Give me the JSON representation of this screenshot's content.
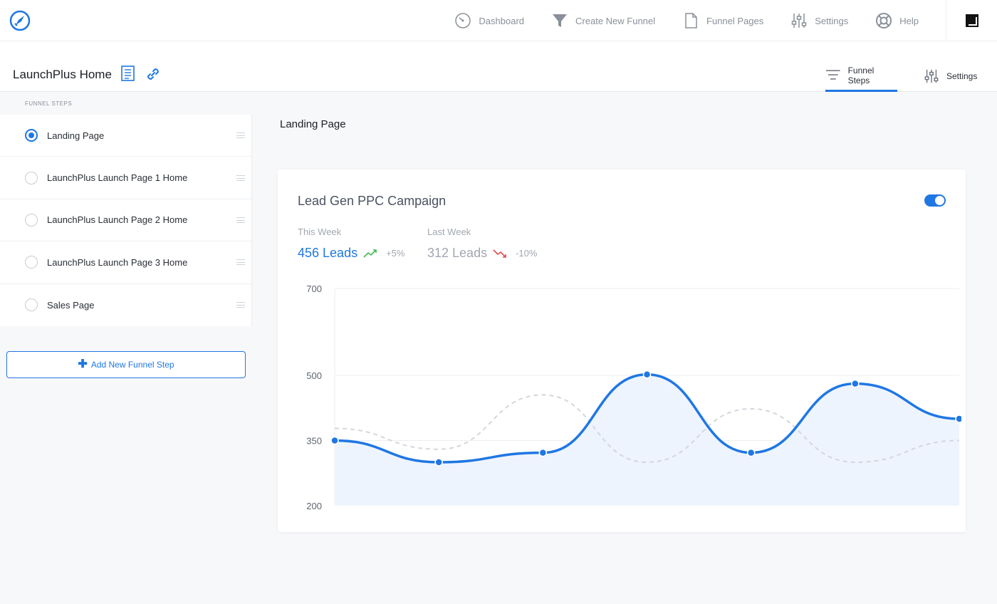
{
  "topnav": {
    "items": [
      {
        "label": "Dashboard",
        "icon": "dashboard-icon"
      },
      {
        "label": "Create New Funnel",
        "icon": "funnel-icon"
      },
      {
        "label": "Funnel Pages",
        "icon": "page-icon"
      },
      {
        "label": "Settings",
        "icon": "sliders-icon"
      },
      {
        "label": "Help",
        "icon": "lifebuoy-icon"
      }
    ]
  },
  "header": {
    "title": "LaunchPlus Home",
    "tabs": [
      {
        "label": "Funnel Steps",
        "active": true
      },
      {
        "label": "Settings",
        "active": false
      }
    ]
  },
  "sidebar": {
    "heading": "FUNNEL STEPS",
    "steps": [
      {
        "label": "Landing Page",
        "selected": true
      },
      {
        "label": "LaunchPlus Launch Page 1 Home",
        "selected": false
      },
      {
        "label": "LaunchPlus Launch Page 2 Home",
        "selected": false
      },
      {
        "label": "LaunchPlus Launch Page 3 Home",
        "selected": false
      },
      {
        "label": "Sales Page",
        "selected": false
      }
    ],
    "add_button": "Add New Funnel Step"
  },
  "main": {
    "section_title": "Landing Page",
    "card": {
      "title": "Lead Gen PPC Campaign",
      "toggle_on": true,
      "this_week": {
        "label": "This Week",
        "value": "456 Leads",
        "change": "+5%"
      },
      "last_week": {
        "label": "Last Week",
        "value": "312 Leads",
        "change": "-10%"
      }
    }
  },
  "colors": {
    "accent": "#1f77e3",
    "up": "#3fb950",
    "down": "#e5484d"
  },
  "chart_data": {
    "type": "line",
    "ylim": [
      200,
      700
    ],
    "yticks": [
      200,
      350,
      500,
      700
    ],
    "grid": true,
    "series": [
      {
        "values": [
          350,
          300,
          322,
          502,
          322,
          481,
          400
        ]
      },
      {
        "values": [
          378,
          330,
          455,
          300,
          423,
          300,
          350
        ]
      }
    ]
  }
}
